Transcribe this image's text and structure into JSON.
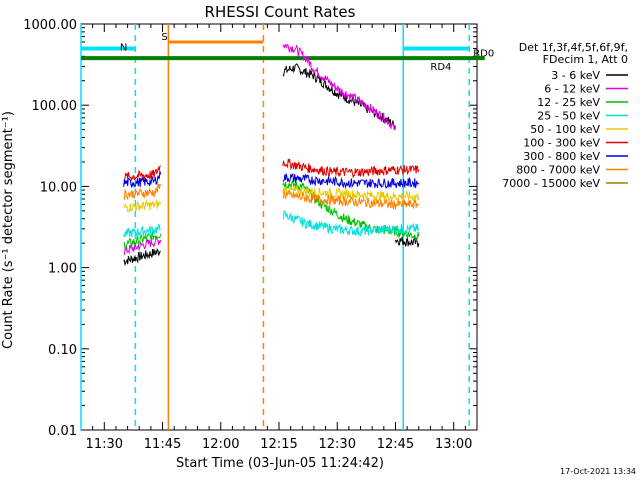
{
  "chart_data": {
    "type": "line",
    "title": "RHESSI Count Rates",
    "xlabel": "Start Time (03-Jun-05 11:24:42)",
    "ylabel": "Count Rate (s⁻¹ detector segment⁻¹)",
    "yscale": "log",
    "ylim": [
      0.01,
      1000
    ],
    "xlim_min": [
      0,
      102
    ],
    "x_ticks": [
      {
        "t": 6,
        "label": "11:30"
      },
      {
        "t": 21,
        "label": "11:45"
      },
      {
        "t": 36,
        "label": "12:00"
      },
      {
        "t": 51,
        "label": "12:15"
      },
      {
        "t": 66,
        "label": "12:30"
      },
      {
        "t": 81,
        "label": "12:45"
      },
      {
        "t": 96,
        "label": "13:00"
      }
    ],
    "y_ticks": [
      {
        "v": 0.01,
        "label": "0.01"
      },
      {
        "v": 0.1,
        "label": "0.10"
      },
      {
        "v": 1,
        "label": "1.00"
      },
      {
        "v": 10,
        "label": "10.00"
      },
      {
        "v": 100,
        "label": "100.00"
      },
      {
        "v": 1000,
        "label": "1000.00"
      }
    ],
    "legend_header": [
      "Det 1f,3f,4f,5f,6f,9f,",
      "FDecim 1, Att 0"
    ],
    "series": [
      {
        "name": "3 - 6 keV",
        "color": "#000000",
        "segments": [
          {
            "x": [
              11,
              20.5
            ],
            "y": [
              1.2,
              1.6
            ]
          },
          {
            "x": [
              52,
              55,
              60,
              66,
              72,
              79,
              81
            ],
            "y": [
              260,
              290,
              230,
              140,
              100,
              65,
              55
            ]
          },
          {
            "x": [
              81,
              87
            ],
            "y": [
              2.2,
              2.0
            ]
          }
        ]
      },
      {
        "name": "6 - 12 keV",
        "color": "#e000e0",
        "segments": [
          {
            "x": [
              11,
              20.5
            ],
            "y": [
              1.6,
              2.2
            ]
          },
          {
            "x": [
              52,
              55,
              58,
              60,
              66,
              72,
              79,
              81
            ],
            "y": [
              560,
              500,
              380,
              280,
              160,
              110,
              65,
              50
            ]
          }
        ]
      },
      {
        "name": "12 - 25 keV",
        "color": "#00c000",
        "segments": [
          {
            "x": [
              11,
              20.5
            ],
            "y": [
              1.9,
              2.6
            ]
          },
          {
            "x": [
              52,
              57,
              62,
              68,
              75,
              81,
              87
            ],
            "y": [
              11,
              10,
              6,
              4,
              3,
              2.8,
              2.4
            ]
          }
        ]
      },
      {
        "name": "25 - 50 keV",
        "color": "#00e0e0",
        "segments": [
          {
            "x": [
              11,
              20.5
            ],
            "y": [
              2.6,
              3.0
            ]
          },
          {
            "x": [
              52,
              58,
              65,
              72,
              80,
              87
            ],
            "y": [
              4.5,
              3.5,
              3.0,
              2.8,
              3.0,
              3.0
            ]
          }
        ]
      },
      {
        "name": "50 - 100 keV",
        "color": "#e8c800",
        "segments": [
          {
            "x": [
              11,
              20.5
            ],
            "y": [
              5.5,
              6.0
            ]
          },
          {
            "x": [
              52,
              60,
              70,
              80,
              87
            ],
            "y": [
              9,
              8.5,
              8,
              7.5,
              7.5
            ]
          }
        ]
      },
      {
        "name": "100 - 300 keV",
        "color": "#e00000",
        "segments": [
          {
            "x": [
              11,
              19,
              20.5
            ],
            "y": [
              13,
              14,
              18
            ]
          },
          {
            "x": [
              52,
              58,
              65,
              72,
              80,
              87
            ],
            "y": [
              20,
              17,
              15,
              15,
              16,
              16
            ]
          }
        ]
      },
      {
        "name": "300 - 800 keV",
        "color": "#0000e0",
        "segments": [
          {
            "x": [
              11,
              19,
              20.5
            ],
            "y": [
              11,
              11.5,
              14
            ]
          },
          {
            "x": [
              52,
              60,
              70,
              80,
              87
            ],
            "y": [
              13,
              12,
              11,
              11,
              11
            ]
          }
        ]
      },
      {
        "name": "800 - 7000 keV",
        "color": "#ff8000",
        "segments": [
          {
            "x": [
              11,
              19,
              20.5
            ],
            "y": [
              8,
              8.5,
              10
            ]
          },
          {
            "x": [
              52,
              60,
              70,
              80,
              87
            ],
            "y": [
              8,
              7,
              6.5,
              6,
              6
            ]
          }
        ]
      },
      {
        "name": "7000 - 15000 keV",
        "color": "#a08000",
        "segments": []
      }
    ],
    "annotations": {
      "N": {
        "label": "N",
        "color": "#00e0ff",
        "x_range": [
          0,
          14
        ],
        "y": 500
      },
      "S": {
        "label": "S",
        "color": "#ff8000",
        "x_range": [
          22.5,
          47
        ],
        "y": 600
      },
      "R": {
        "label": "RD0",
        "color": "#00e0ff",
        "x_range": [
          83,
          100
        ],
        "y": 500
      },
      "RD4": {
        "label": "RD4",
        "color": "#008000",
        "x_range": [
          0,
          104
        ],
        "y": 380
      },
      "vlines": [
        {
          "x": 0,
          "color": "#00e0ff",
          "style": "solid"
        },
        {
          "x": 14,
          "color": "#00e0ff",
          "style": "dashed"
        },
        {
          "x": 22.5,
          "color": "#ff8000",
          "style": "solid"
        },
        {
          "x": 47,
          "color": "#ff8000",
          "style": "dashed"
        },
        {
          "x": 83,
          "color": "#00e0ff",
          "style": "solid"
        },
        {
          "x": 100,
          "color": "#00e0ff",
          "style": "dashed"
        }
      ]
    },
    "timestamp": "17-Oct-2021 13:34"
  }
}
